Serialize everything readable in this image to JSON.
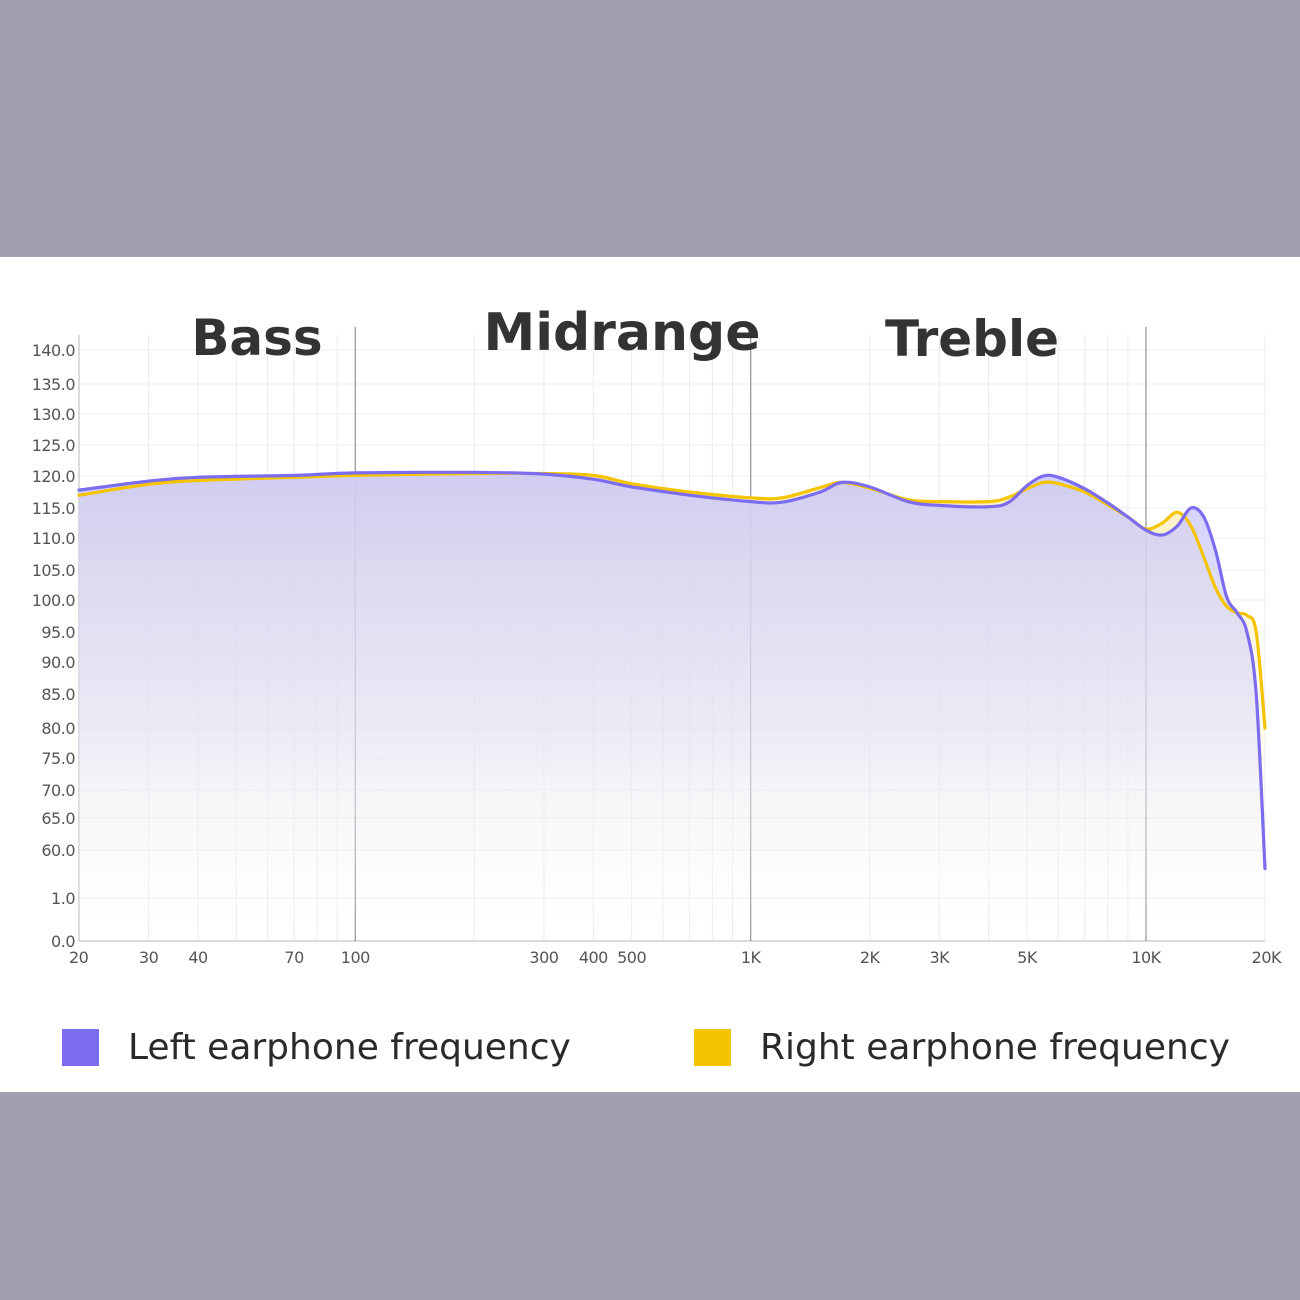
{
  "chart_data": {
    "type": "line",
    "title": "",
    "xlabel": "",
    "ylabel": "",
    "x_scale": "log",
    "regions": [
      "Bass",
      "Midrange",
      "Treble"
    ],
    "region_boundaries": [
      "100",
      "1K",
      "10K"
    ],
    "y_tick_labels": [
      "140.0",
      "135.0",
      "130.0",
      "125.0",
      "120.0",
      "115.0",
      "110.0",
      "105.0",
      "100.0",
      "95.0",
      "90.0",
      "85.0",
      "80.0",
      "75.0",
      "70.0",
      "65.0",
      "60.0",
      "1.0",
      "0.0"
    ],
    "x_tick_labels": [
      "20",
      "30",
      "40",
      "70",
      "100",
      "300",
      "400",
      "500",
      "1K",
      "2K",
      "3K",
      "5K",
      "10K",
      "20K"
    ],
    "x_tick_values": [
      20,
      30,
      40,
      70,
      100,
      300,
      400,
      500,
      1000,
      2000,
      3000,
      5000,
      10000,
      20000
    ],
    "grid": true,
    "legend_position": "bottom",
    "series": [
      {
        "name": "Left earphone frequency",
        "color": "#7b6cf0",
        "points": [
          [
            20,
            117.8
          ],
          [
            30,
            119.2
          ],
          [
            40,
            119.8
          ],
          [
            70,
            120.1
          ],
          [
            100,
            120.5
          ],
          [
            200,
            120.6
          ],
          [
            300,
            120.3
          ],
          [
            400,
            119.5
          ],
          [
            500,
            118.3
          ],
          [
            700,
            117.0
          ],
          [
            1000,
            116.0
          ],
          [
            1200,
            115.9
          ],
          [
            1500,
            117.5
          ],
          [
            1700,
            119.0
          ],
          [
            2000,
            118.3
          ],
          [
            2500,
            116.0
          ],
          [
            3000,
            115.4
          ],
          [
            4000,
            115.2
          ],
          [
            4500,
            115.9
          ],
          [
            5000,
            118.5
          ],
          [
            5500,
            120.0
          ],
          [
            6000,
            119.8
          ],
          [
            7000,
            118.0
          ],
          [
            8000,
            115.8
          ],
          [
            9000,
            113.5
          ],
          [
            10000,
            111.3
          ],
          [
            11000,
            110.5
          ],
          [
            12000,
            112.0
          ],
          [
            13000,
            115.0
          ],
          [
            14000,
            113.5
          ],
          [
            15000,
            108.0
          ],
          [
            16000,
            100.5
          ],
          [
            17000,
            98.0
          ],
          [
            18000,
            95.0
          ],
          [
            19000,
            85.0
          ],
          [
            20000,
            57.0
          ]
        ]
      },
      {
        "name": "Right earphone frequency",
        "color": "#f5c400",
        "points": [
          [
            20,
            117.0
          ],
          [
            30,
            118.7
          ],
          [
            40,
            119.3
          ],
          [
            70,
            119.8
          ],
          [
            100,
            120.1
          ],
          [
            200,
            120.4
          ],
          [
            300,
            120.4
          ],
          [
            400,
            120.1
          ],
          [
            500,
            118.8
          ],
          [
            700,
            117.5
          ],
          [
            1000,
            116.6
          ],
          [
            1200,
            116.6
          ],
          [
            1500,
            118.2
          ],
          [
            1700,
            119.0
          ],
          [
            2000,
            118.1
          ],
          [
            2500,
            116.3
          ],
          [
            3000,
            116.0
          ],
          [
            4000,
            116.0
          ],
          [
            4500,
            116.7
          ],
          [
            5000,
            118.0
          ],
          [
            5500,
            119.0
          ],
          [
            6000,
            118.8
          ],
          [
            7000,
            117.5
          ],
          [
            8000,
            115.5
          ],
          [
            9000,
            113.5
          ],
          [
            10000,
            111.5
          ],
          [
            11000,
            112.5
          ],
          [
            12000,
            114.3
          ],
          [
            13000,
            112.0
          ],
          [
            14000,
            107.0
          ],
          [
            15000,
            102.0
          ],
          [
            16000,
            99.0
          ],
          [
            17000,
            98.0
          ],
          [
            18000,
            97.6
          ],
          [
            19000,
            95.0
          ],
          [
            20000,
            80.0
          ]
        ]
      }
    ]
  }
}
